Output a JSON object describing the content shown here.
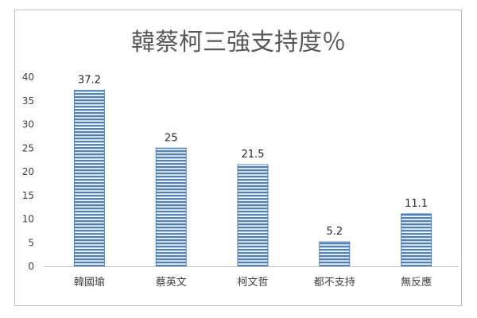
{
  "chart_data": {
    "type": "bar",
    "title": "韓蔡柯三強支持度％",
    "categories": [
      "韓國瑜",
      "蔡英文",
      "柯文哲",
      "都不支持",
      "無反應"
    ],
    "values": [
      37.2,
      25,
      21.5,
      5.2,
      11.1
    ],
    "data_labels": [
      "37.2",
      "25",
      "21.5",
      "5.2",
      "11.1"
    ],
    "ylim": [
      0,
      40
    ],
    "yticks": [
      0,
      5,
      10,
      15,
      20,
      25,
      30,
      35,
      40
    ],
    "xlabel": "",
    "ylabel": "",
    "grid": false,
    "legend": "none",
    "bar_color": "#4f81bd",
    "bar_stripe_color": "#ffffff"
  }
}
